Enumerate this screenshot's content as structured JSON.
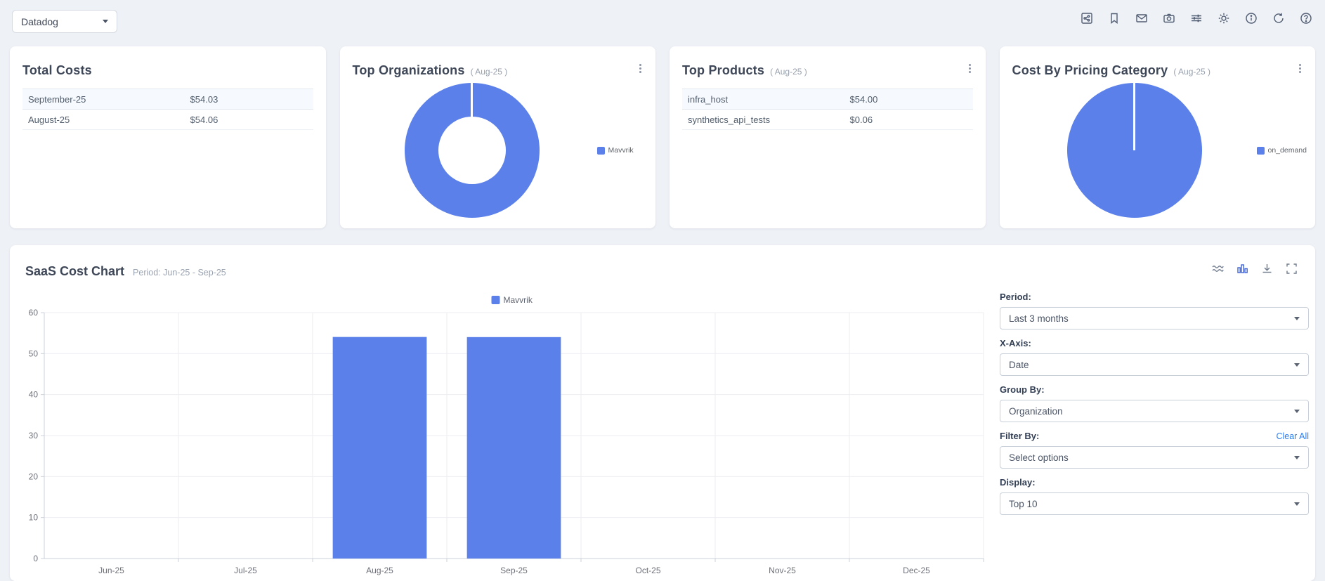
{
  "topbar": {
    "app_selector": {
      "value": "Datadog"
    },
    "icons": [
      "share",
      "bookmark",
      "mail",
      "camera",
      "sliders",
      "gear",
      "info",
      "refresh",
      "help"
    ]
  },
  "cards": {
    "total_costs": {
      "title": "Total Costs",
      "rows": [
        {
          "label": "September-25",
          "value": "$54.03"
        },
        {
          "label": "August-25",
          "value": "$54.06"
        }
      ]
    },
    "top_organizations": {
      "title": "Top Organizations",
      "period": "( Aug-25 )",
      "legend": "Mavvrik",
      "color": "#5b80ea"
    },
    "top_products": {
      "title": "Top Products",
      "period": "( Aug-25 )",
      "rows": [
        {
          "label": "infra_host",
          "value": "$54.00"
        },
        {
          "label": "synthetics_api_tests",
          "value": "$0.06"
        }
      ]
    },
    "cost_by_pricing_category": {
      "title": "Cost By Pricing Category",
      "period": "( Aug-25 )",
      "legend": "on_demand",
      "color": "#5b80ea"
    }
  },
  "saas_panel": {
    "title": "SaaS Cost Chart",
    "subtitle": "Period: Jun-25 - Sep-25",
    "icons": [
      "line-chart",
      "bar-chart",
      "download",
      "fullscreen"
    ],
    "controls": [
      {
        "label": "Period:",
        "value": "Last 3 months"
      },
      {
        "label": "X-Axis:",
        "value": "Date"
      },
      {
        "label": "Group By:",
        "value": "Organization"
      },
      {
        "label": "Filter By:",
        "value": "Select options",
        "action": "Clear All"
      },
      {
        "label": "Display:",
        "value": "Top 10"
      }
    ]
  },
  "chart_data": {
    "type": "bar",
    "title": "",
    "categories": [
      "Jun-25",
      "Jul-25",
      "Aug-25",
      "Sep-25",
      "Oct-25",
      "Nov-25",
      "Dec-25"
    ],
    "series": [
      {
        "name": "Mavvrik",
        "values": [
          0,
          0,
          54.06,
          54.03,
          0,
          0,
          0
        ],
        "color": "#5b80ea"
      }
    ],
    "xlabel": "",
    "ylabel": "",
    "ylim": [
      0,
      60
    ],
    "ytick_step": 10,
    "grid": true,
    "legend_position": "top-center"
  },
  "colors": {
    "accent_blue": "#5b80ea",
    "background": "#eef1f6",
    "grid_line": "#ededf2",
    "axis_line": "#cbd0d8",
    "axis_text": "#6e7079",
    "legend_text": "#5e6470",
    "link_blue": "#2d7ff0"
  }
}
